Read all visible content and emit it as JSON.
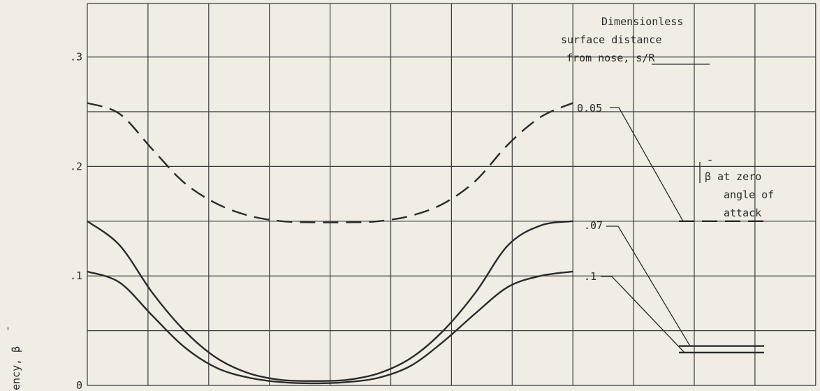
{
  "chart_data": {
    "type": "line",
    "ylabel": "ency, β",
    "ylabel_bar": "¯",
    "ylim": [
      0,
      0.34
    ],
    "y_ticks": [
      {
        "value": 0,
        "label": "0"
      },
      {
        "value": 0.1,
        "label": ".1"
      },
      {
        "value": 0.2,
        "label": ".2"
      },
      {
        "value": 0.3,
        "label": ".3"
      }
    ],
    "series": [
      {
        "label": "0.05",
        "style": "dashed",
        "points": [
          [
            0,
            0.258
          ],
          [
            0.5,
            0.248
          ],
          [
            1,
            0.216
          ],
          [
            1.5,
            0.185
          ],
          [
            2,
            0.166
          ],
          [
            2.5,
            0.155
          ],
          [
            3,
            0.15
          ],
          [
            3.5,
            0.149
          ],
          [
            4,
            0.149
          ],
          [
            4.5,
            0.15
          ],
          [
            5,
            0.155
          ],
          [
            5.5,
            0.166
          ],
          [
            6,
            0.187
          ],
          [
            6.5,
            0.22
          ],
          [
            7,
            0.245
          ],
          [
            7.5,
            0.258
          ]
        ],
        "zero_alpha": 0.15
      },
      {
        "label": ".07",
        "style": "solid",
        "points": [
          [
            0,
            0.15
          ],
          [
            0.5,
            0.128
          ],
          [
            1,
            0.085
          ],
          [
            1.5,
            0.05
          ],
          [
            2,
            0.025
          ],
          [
            2.5,
            0.011
          ],
          [
            3,
            0.005
          ],
          [
            3.5,
            0.004
          ],
          [
            4,
            0.005
          ],
          [
            4.5,
            0.011
          ],
          [
            5,
            0.025
          ],
          [
            5.5,
            0.05
          ],
          [
            6,
            0.085
          ],
          [
            6.5,
            0.128
          ],
          [
            7,
            0.146
          ],
          [
            7.5,
            0.15
          ]
        ],
        "zero_alpha": 0.036
      },
      {
        "label": ".1",
        "style": "solid",
        "points": [
          [
            0,
            0.104
          ],
          [
            0.5,
            0.094
          ],
          [
            1,
            0.064
          ],
          [
            1.5,
            0.035
          ],
          [
            2,
            0.016
          ],
          [
            2.5,
            0.007
          ],
          [
            3,
            0.003
          ],
          [
            3.5,
            0.002
          ],
          [
            4,
            0.003
          ],
          [
            4.5,
            0.007
          ],
          [
            5,
            0.018
          ],
          [
            5.5,
            0.04
          ],
          [
            6,
            0.066
          ],
          [
            6.5,
            0.09
          ],
          [
            7,
            0.1
          ],
          [
            7.5,
            0.104
          ]
        ],
        "zero_alpha": 0.03
      }
    ],
    "legend_title_lines": [
      "Dimensionless",
      "surface distance",
      "from nose, s/R"
    ],
    "zero_angle_lines": [
      "β at zero",
      "angle of",
      "attack"
    ],
    "zero_angle_bar": "¯",
    "grid": true
  }
}
